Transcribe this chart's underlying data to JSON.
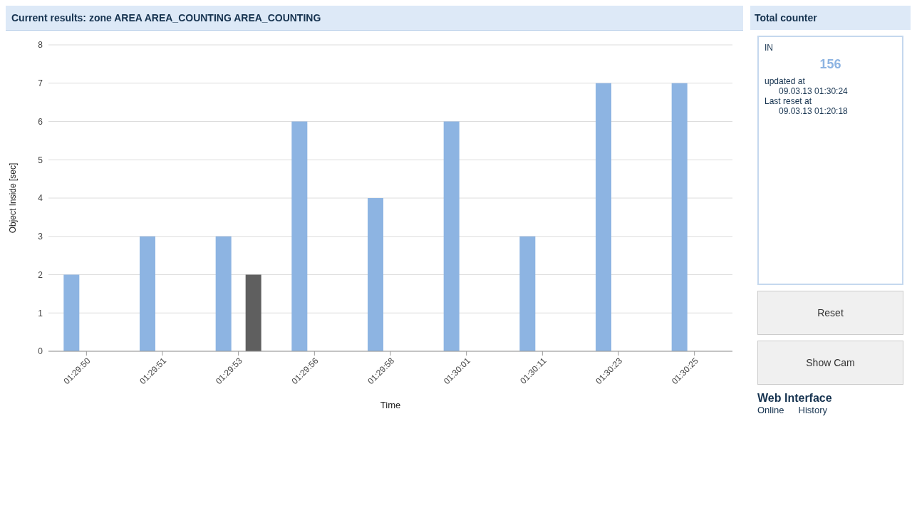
{
  "chart_data": [
    {
      "type": "bar",
      "title": "Current results: zone AREA AREA_COUNTING AREA_COUNTING",
      "xlabel": "Time",
      "ylabel": "Object Inside [sec]",
      "categories": [
        "01:29:50",
        "01:29:51",
        "01:29:53",
        "01:29:56",
        "01:29:58",
        "01:30:01",
        "01:30:11",
        "01:30:23",
        "01:30:25"
      ],
      "series": [
        {
          "color": "#8db4e2",
          "values": [
            2,
            3,
            3,
            6,
            4,
            6,
            3,
            7,
            7
          ]
        },
        {
          "color": "#5f5f5f",
          "values": [
            null,
            null,
            2,
            null,
            null,
            null,
            null,
            null,
            null
          ]
        }
      ],
      "ylim": [
        0,
        8
      ],
      "yticks": [
        0,
        1,
        2,
        3,
        4,
        5,
        6,
        7,
        8
      ],
      "grid": "y",
      "legend": false
    },
    {
      "type": "other",
      "title": "Total counter",
      "annotations": [
        "IN",
        "156",
        "updated at",
        "09.03.13 01:30:24",
        "Last reset at",
        "09.03.13 01:20:18",
        "Reset",
        "Show Cam",
        "Web Interface",
        "Online",
        "History"
      ]
    }
  ]
}
